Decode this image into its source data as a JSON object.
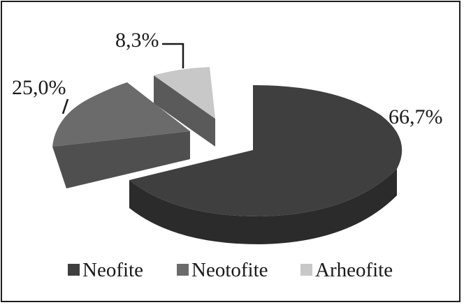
{
  "chart_data": {
    "type": "pie",
    "style": "3d-exploded",
    "title": "",
    "slices": [
      {
        "name": "Neofite",
        "value": 66.7,
        "label": "66,7%",
        "color": "#3f3f3f",
        "side_color": "#2b2b2b"
      },
      {
        "name": "Neotofite",
        "value": 25.0,
        "label": "25,0%",
        "color": "#6b6b6b",
        "side_color": "#4f4f4f"
      },
      {
        "name": "Arheofite",
        "value": 8.3,
        "label": "8,3%",
        "color": "#c8c8c8",
        "side_color": "#5a5a5a"
      }
    ],
    "legend": {
      "position": "bottom",
      "items": [
        "Neofite",
        "Neotofite",
        "Arheofite"
      ]
    }
  }
}
